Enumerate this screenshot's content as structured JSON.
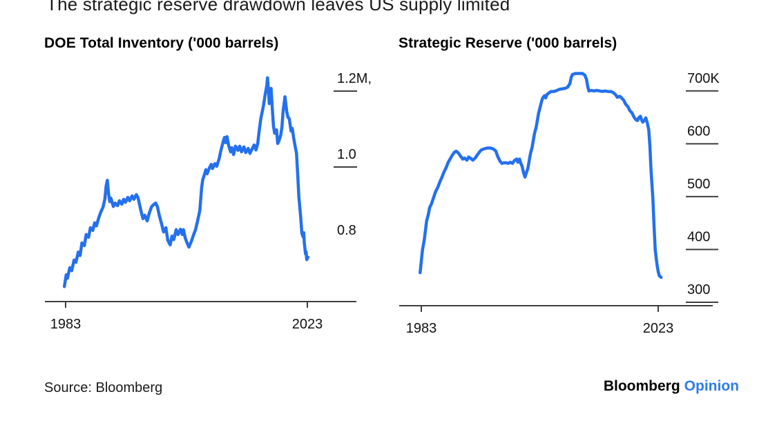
{
  "page": {
    "title": "The strategic reserve drawdown leaves US supply limited",
    "source": "Source: Bloomberg",
    "logo": {
      "brand": "Bloomberg",
      "suffix": "Opinion"
    }
  },
  "colors": {
    "line_blue": "#2470ee",
    "opinion_blue": "#2f7ce9",
    "axis": "#3d3d3d",
    "text": "#111111"
  },
  "chart_data": [
    {
      "type": "line",
      "title": "DOE Total Inventory ('000 barrels)",
      "x_tick_labels": [
        "1983",
        "2023"
      ],
      "x_tick_values": [
        1983,
        2023
      ],
      "y_ticks": [
        {
          "label": "1.2M,",
          "value": 1.2,
          "has_tick_line": true
        },
        {
          "label": "1.0",
          "value": 1.0,
          "has_tick_line": true
        },
        {
          "label": "0.8",
          "value": 0.8,
          "has_tick_line": false
        }
      ],
      "xlim": [
        1982.7,
        2023.5
      ],
      "ylim": [
        0.66,
        1.26
      ],
      "grid": false,
      "legend": "none",
      "series": [
        [
          1982.8,
          0.685
        ],
        [
          1983.1,
          0.716
        ],
        [
          1983.3,
          0.707
        ],
        [
          1983.7,
          0.735
        ],
        [
          1984.0,
          0.727
        ],
        [
          1984.4,
          0.755
        ],
        [
          1984.7,
          0.749
        ],
        [
          1985.1,
          0.776
        ],
        [
          1985.4,
          0.767
        ],
        [
          1985.7,
          0.8
        ],
        [
          1986.1,
          0.793
        ],
        [
          1986.4,
          0.822
        ],
        [
          1986.8,
          0.815
        ],
        [
          1987.1,
          0.84
        ],
        [
          1987.5,
          0.833
        ],
        [
          1987.8,
          0.853
        ],
        [
          1988.1,
          0.845
        ],
        [
          1988.5,
          0.867
        ],
        [
          1988.8,
          0.88
        ],
        [
          1989.2,
          0.895
        ],
        [
          1989.5,
          0.916
        ],
        [
          1989.7,
          0.949
        ],
        [
          1989.9,
          0.965
        ],
        [
          1990.1,
          0.931
        ],
        [
          1990.3,
          0.909
        ],
        [
          1990.5,
          0.918
        ],
        [
          1990.9,
          0.896
        ],
        [
          1991.2,
          0.905
        ],
        [
          1991.6,
          0.898
        ],
        [
          1991.9,
          0.911
        ],
        [
          1992.3,
          0.902
        ],
        [
          1992.6,
          0.915
        ],
        [
          1992.9,
          0.907
        ],
        [
          1993.3,
          0.92
        ],
        [
          1993.6,
          0.911
        ],
        [
          1994.0,
          0.924
        ],
        [
          1994.3,
          0.915
        ],
        [
          1994.7,
          0.927
        ],
        [
          1995.0,
          0.918
        ],
        [
          1995.5,
          0.882
        ],
        [
          1995.8,
          0.864
        ],
        [
          1996.1,
          0.873
        ],
        [
          1996.5,
          0.858
        ],
        [
          1996.8,
          0.876
        ],
        [
          1997.2,
          0.895
        ],
        [
          1997.5,
          0.9
        ],
        [
          1997.9,
          0.905
        ],
        [
          1998.2,
          0.895
        ],
        [
          1998.5,
          0.873
        ],
        [
          1998.9,
          0.849
        ],
        [
          1999.2,
          0.829
        ],
        [
          1999.6,
          0.84
        ],
        [
          1999.9,
          0.807
        ],
        [
          2000.3,
          0.795
        ],
        [
          2000.6,
          0.818
        ],
        [
          2000.9,
          0.809
        ],
        [
          2001.3,
          0.835
        ],
        [
          2001.6,
          0.822
        ],
        [
          2002.0,
          0.836
        ],
        [
          2002.3,
          0.822
        ],
        [
          2002.5,
          0.835
        ],
        [
          2002.8,
          0.813
        ],
        [
          2003.1,
          0.8
        ],
        [
          2003.4,
          0.789
        ],
        [
          2003.8,
          0.804
        ],
        [
          2004.1,
          0.818
        ],
        [
          2004.5,
          0.835
        ],
        [
          2004.8,
          0.855
        ],
        [
          2005.2,
          0.885
        ],
        [
          2005.5,
          0.945
        ],
        [
          2005.7,
          0.967
        ],
        [
          2006.0,
          0.982
        ],
        [
          2006.2,
          0.993
        ],
        [
          2006.4,
          0.982
        ],
        [
          2006.8,
          0.998
        ],
        [
          2007.1,
          1.007
        ],
        [
          2007.3,
          0.996
        ],
        [
          2007.7,
          1.009
        ],
        [
          2008.0,
          1.002
        ],
        [
          2008.4,
          1.022
        ],
        [
          2008.7,
          1.044
        ],
        [
          2009.1,
          1.069
        ],
        [
          2009.3,
          1.078
        ],
        [
          2009.5,
          1.064
        ],
        [
          2009.7,
          1.08
        ],
        [
          2010.0,
          1.055
        ],
        [
          2010.3,
          1.04
        ],
        [
          2010.5,
          1.051
        ],
        [
          2010.8,
          1.033
        ],
        [
          2011.1,
          1.055
        ],
        [
          2011.5,
          1.044
        ],
        [
          2011.8,
          1.055
        ],
        [
          2012.1,
          1.04
        ],
        [
          2012.5,
          1.053
        ],
        [
          2012.8,
          1.038
        ],
        [
          2013.2,
          1.049
        ],
        [
          2013.5,
          1.036
        ],
        [
          2013.9,
          1.049
        ],
        [
          2014.2,
          1.058
        ],
        [
          2014.5,
          1.045
        ],
        [
          2014.8,
          1.062
        ],
        [
          2015.0,
          1.091
        ],
        [
          2015.3,
          1.127
        ],
        [
          2015.7,
          1.158
        ],
        [
          2016.0,
          1.189
        ],
        [
          2016.3,
          1.216
        ],
        [
          2016.4,
          1.235
        ],
        [
          2016.6,
          1.195
        ],
        [
          2016.7,
          1.167
        ],
        [
          2016.9,
          1.193
        ],
        [
          2017.0,
          1.207
        ],
        [
          2017.2,
          1.153
        ],
        [
          2017.4,
          1.107
        ],
        [
          2017.6,
          1.089
        ],
        [
          2017.9,
          1.098
        ],
        [
          2018.1,
          1.062
        ],
        [
          2018.3,
          1.069
        ],
        [
          2018.6,
          1.084
        ],
        [
          2018.8,
          1.105
        ],
        [
          2019.0,
          1.149
        ],
        [
          2019.2,
          1.173
        ],
        [
          2019.3,
          1.185
        ],
        [
          2019.6,
          1.145
        ],
        [
          2019.8,
          1.131
        ],
        [
          2020.0,
          1.127
        ],
        [
          2020.3,
          1.095
        ],
        [
          2020.5,
          1.102
        ],
        [
          2020.7,
          1.08
        ],
        [
          2020.9,
          1.062
        ],
        [
          2021.2,
          1.036
        ],
        [
          2021.4,
          0.982
        ],
        [
          2021.6,
          0.922
        ],
        [
          2021.9,
          0.867
        ],
        [
          2022.1,
          0.825
        ],
        [
          2022.3,
          0.816
        ],
        [
          2022.4,
          0.827
        ],
        [
          2022.5,
          0.8
        ],
        [
          2022.7,
          0.771
        ],
        [
          2022.8,
          0.776
        ],
        [
          2022.9,
          0.756
        ],
        [
          2023.1,
          0.762
        ]
      ]
    },
    {
      "type": "line",
      "title": "Strategic Reserve ('000 barrels)",
      "x_tick_labels": [
        "1983",
        "2023"
      ],
      "x_tick_values": [
        1983,
        2023
      ],
      "y_ticks": [
        {
          "label": "700K",
          "value": 700,
          "has_tick_line": true
        },
        {
          "label": "600",
          "value": 600,
          "has_tick_line": true
        },
        {
          "label": "500",
          "value": 500,
          "has_tick_line": true
        },
        {
          "label": "400",
          "value": 400,
          "has_tick_line": true
        },
        {
          "label": "300",
          "value": 300,
          "has_tick_line": true
        }
      ],
      "xlim": [
        1982.7,
        2023.6
      ],
      "ylim": [
        290,
        745
      ],
      "grid": false,
      "legend": "none",
      "series": [
        [
          1982.8,
          356
        ],
        [
          1983.0,
          378
        ],
        [
          1983.2,
          399
        ],
        [
          1983.5,
          418
        ],
        [
          1983.7,
          436
        ],
        [
          1983.9,
          454
        ],
        [
          1984.2,
          467
        ],
        [
          1984.4,
          479
        ],
        [
          1984.7,
          486
        ],
        [
          1985.1,
          499
        ],
        [
          1985.4,
          509
        ],
        [
          1985.8,
          518
        ],
        [
          1986.1,
          527
        ],
        [
          1986.5,
          537
        ],
        [
          1986.8,
          546
        ],
        [
          1987.2,
          555
        ],
        [
          1987.5,
          564
        ],
        [
          1987.9,
          572
        ],
        [
          1988.2,
          578
        ],
        [
          1988.6,
          584
        ],
        [
          1988.9,
          586
        ],
        [
          1989.3,
          582
        ],
        [
          1989.6,
          577
        ],
        [
          1990.0,
          571
        ],
        [
          1990.3,
          573
        ],
        [
          1990.7,
          569
        ],
        [
          1991.0,
          575
        ],
        [
          1991.4,
          572
        ],
        [
          1991.7,
          569
        ],
        [
          1992.1,
          573
        ],
        [
          1992.4,
          578
        ],
        [
          1992.8,
          584
        ],
        [
          1993.1,
          588
        ],
        [
          1993.5,
          590
        ],
        [
          1994.1,
          592
        ],
        [
          1994.7,
          592
        ],
        [
          1995.2,
          590
        ],
        [
          1995.6,
          586
        ],
        [
          1995.9,
          576
        ],
        [
          1996.3,
          567
        ],
        [
          1996.6,
          563
        ],
        [
          1997.0,
          564
        ],
        [
          1997.3,
          564
        ],
        [
          1997.7,
          563
        ],
        [
          1998.0,
          565
        ],
        [
          1998.4,
          563
        ],
        [
          1998.7,
          568
        ],
        [
          1999.1,
          571
        ],
        [
          1999.3,
          565
        ],
        [
          1999.6,
          571
        ],
        [
          1999.8,
          563
        ],
        [
          2000.0,
          558
        ],
        [
          2000.3,
          544
        ],
        [
          2000.5,
          537
        ],
        [
          2000.7,
          544
        ],
        [
          2001.0,
          554
        ],
        [
          2001.2,
          567
        ],
        [
          2001.4,
          580
        ],
        [
          2001.7,
          593
        ],
        [
          2001.9,
          606
        ],
        [
          2002.1,
          619
        ],
        [
          2002.4,
          632
        ],
        [
          2002.6,
          645
        ],
        [
          2002.8,
          658
        ],
        [
          2003.1,
          671
        ],
        [
          2003.3,
          680
        ],
        [
          2003.5,
          687
        ],
        [
          2003.8,
          691
        ],
        [
          2004.0,
          687
        ],
        [
          2004.2,
          693
        ],
        [
          2004.5,
          696
        ],
        [
          2004.9,
          699
        ],
        [
          2005.4,
          699
        ],
        [
          2005.9,
          701
        ],
        [
          2006.3,
          703
        ],
        [
          2006.8,
          704
        ],
        [
          2007.3,
          705
        ],
        [
          2007.7,
          707
        ],
        [
          2008.1,
          714
        ],
        [
          2008.3,
          725
        ],
        [
          2008.5,
          731
        ],
        [
          2009.0,
          733
        ],
        [
          2009.6,
          733
        ],
        [
          2010.2,
          733
        ],
        [
          2010.6,
          730
        ],
        [
          2010.9,
          722
        ],
        [
          2011.1,
          708
        ],
        [
          2011.3,
          700
        ],
        [
          2011.7,
          701
        ],
        [
          2012.2,
          700
        ],
        [
          2012.6,
          701
        ],
        [
          2013.1,
          700
        ],
        [
          2013.6,
          699
        ],
        [
          2014.0,
          700
        ],
        [
          2014.5,
          699
        ],
        [
          2015.0,
          699
        ],
        [
          2015.4,
          697
        ],
        [
          2015.8,
          693
        ],
        [
          2016.1,
          688
        ],
        [
          2016.5,
          690
        ],
        [
          2016.8,
          687
        ],
        [
          2017.2,
          682
        ],
        [
          2017.5,
          675
        ],
        [
          2017.9,
          670
        ],
        [
          2018.2,
          663
        ],
        [
          2018.6,
          658
        ],
        [
          2018.8,
          653
        ],
        [
          2019.0,
          649
        ],
        [
          2019.3,
          645
        ],
        [
          2019.5,
          644
        ],
        [
          2019.7,
          649
        ],
        [
          2020.0,
          652
        ],
        [
          2020.2,
          645
        ],
        [
          2020.4,
          641
        ],
        [
          2020.7,
          645
        ],
        [
          2020.9,
          649
        ],
        [
          2021.1,
          642
        ],
        [
          2021.4,
          627
        ],
        [
          2021.6,
          595
        ],
        [
          2021.8,
          548
        ],
        [
          2022.1,
          496
        ],
        [
          2022.3,
          444
        ],
        [
          2022.5,
          399
        ],
        [
          2022.8,
          371
        ],
        [
          2023.0,
          358
        ],
        [
          2023.2,
          350
        ],
        [
          2023.5,
          347
        ]
      ]
    }
  ]
}
